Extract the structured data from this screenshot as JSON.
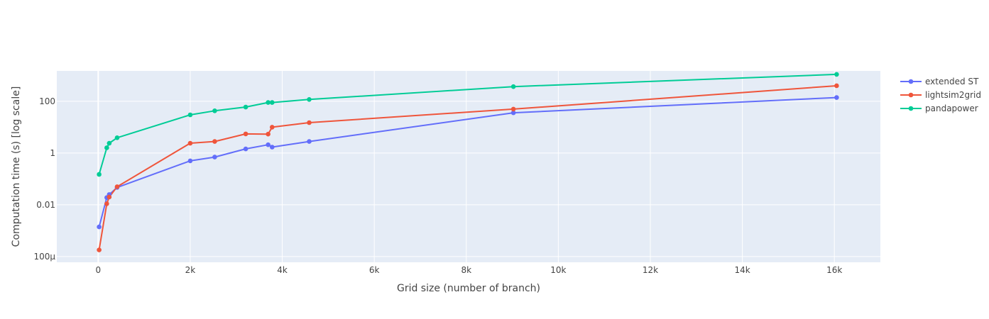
{
  "chart_data": {
    "type": "line",
    "title": "",
    "xlabel": "Grid size (number of branch)",
    "ylabel": "Computation time (s) [log scale]",
    "xlim": [
      -900,
      17000
    ],
    "ylim": [
      6e-05,
      1500
    ],
    "y_scale": "log",
    "grid": true,
    "legend_position": "top-right",
    "x_ticks": [
      {
        "value": 0,
        "label": "0"
      },
      {
        "value": 2000,
        "label": "2k"
      },
      {
        "value": 4000,
        "label": "4k"
      },
      {
        "value": 6000,
        "label": "6k"
      },
      {
        "value": 8000,
        "label": "8k"
      },
      {
        "value": 10000,
        "label": "10k"
      },
      {
        "value": 12000,
        "label": "12k"
      },
      {
        "value": 14000,
        "label": "14k"
      },
      {
        "value": 16000,
        "label": "16k"
      }
    ],
    "y_ticks": [
      {
        "value": 0.0001,
        "label": "100μ"
      },
      {
        "value": 0.01,
        "label": "0.01"
      },
      {
        "value": 1,
        "label": "1"
      },
      {
        "value": 100,
        "label": "100"
      }
    ],
    "series": [
      {
        "name": "extended ST",
        "color": "#636efa",
        "x": [
          20,
          186,
          240,
          411,
          2000,
          2532,
          3206,
          3693,
          3780,
          4586,
          9024,
          16049
        ],
        "y": [
          0.0014,
          0.019,
          0.025,
          0.047,
          0.5,
          0.7,
          1.45,
          2.1,
          1.7,
          2.8,
          36,
          140
        ]
      },
      {
        "name": "lightsim2grid",
        "color": "#ef553b",
        "x": [
          20,
          186,
          240,
          411,
          2000,
          2532,
          3206,
          3693,
          3780,
          4586,
          9024,
          16049
        ],
        "y": [
          0.00018,
          0.011,
          0.02,
          0.05,
          2.4,
          2.8,
          5.5,
          5.4,
          10,
          15,
          50,
          400
        ]
      },
      {
        "name": "pandapower",
        "color": "#00cc96",
        "x": [
          20,
          186,
          240,
          411,
          2000,
          2532,
          3206,
          3693,
          3780,
          4586,
          9024,
          16049
        ],
        "y": [
          0.15,
          1.6,
          2.4,
          3.9,
          30,
          43,
          60,
          90,
          90,
          118,
          370,
          1100
        ]
      }
    ]
  }
}
